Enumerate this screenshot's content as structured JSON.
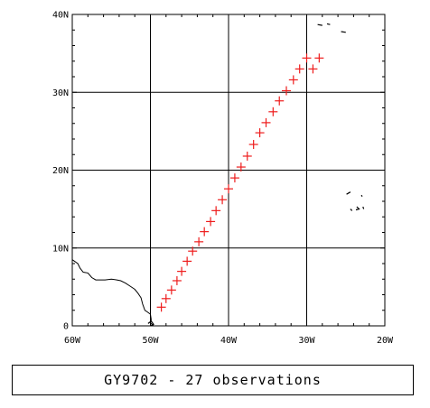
{
  "caption": "GY9702 - 27 observations",
  "colors": {
    "marker": "#ee1c1c",
    "grid": "#000000",
    "land": "#000000"
  },
  "map": {
    "lon_range": [
      -60,
      -20
    ],
    "lat_range": [
      0,
      40
    ],
    "lon_ticks": [
      {
        "value": -60,
        "label": "60W"
      },
      {
        "value": -50,
        "label": "50W"
      },
      {
        "value": -40,
        "label": "40W"
      },
      {
        "value": -30,
        "label": "30W"
      },
      {
        "value": -20,
        "label": "20W"
      }
    ],
    "lat_ticks": [
      {
        "value": 0,
        "label": "0"
      },
      {
        "value": 10,
        "label": "10N"
      },
      {
        "value": 20,
        "label": "20N"
      },
      {
        "value": 30,
        "label": "30N"
      },
      {
        "value": 40,
        "label": "40N"
      }
    ],
    "marker_symbol": "cross",
    "observations": [
      [
        -48.6,
        2.4
      ],
      [
        -48.0,
        3.5
      ],
      [
        -47.3,
        4.6
      ],
      [
        -46.6,
        5.8
      ],
      [
        -46.0,
        7.0
      ],
      [
        -45.3,
        8.3
      ],
      [
        -44.6,
        9.6
      ],
      [
        -43.8,
        10.8
      ],
      [
        -43.1,
        12.1
      ],
      [
        -42.3,
        13.4
      ],
      [
        -41.6,
        14.8
      ],
      [
        -40.8,
        16.2
      ],
      [
        -40.0,
        17.6
      ],
      [
        -39.2,
        19.0
      ],
      [
        -38.4,
        20.4
      ],
      [
        -37.6,
        21.8
      ],
      [
        -36.8,
        23.3
      ],
      [
        -36.0,
        24.8
      ],
      [
        -35.2,
        26.1
      ],
      [
        -34.3,
        27.5
      ],
      [
        -33.5,
        28.9
      ],
      [
        -32.6,
        30.2
      ],
      [
        -31.7,
        31.6
      ],
      [
        -30.9,
        33.0
      ],
      [
        -30.0,
        34.4
      ],
      [
        -29.2,
        33.0
      ],
      [
        -28.4,
        34.4
      ]
    ],
    "coastline_south_america": [
      [
        -60,
        8.5
      ],
      [
        -59.3,
        8.0
      ],
      [
        -59.0,
        7.4
      ],
      [
        -58.6,
        6.9
      ],
      [
        -58.0,
        6.8
      ],
      [
        -57.5,
        6.2
      ],
      [
        -57.0,
        5.9
      ],
      [
        -56.4,
        5.9
      ],
      [
        -55.8,
        5.9
      ],
      [
        -55.0,
        6.0
      ],
      [
        -54.3,
        5.9
      ],
      [
        -53.8,
        5.8
      ],
      [
        -53.2,
        5.5
      ],
      [
        -52.6,
        5.1
      ],
      [
        -52.0,
        4.7
      ],
      [
        -51.6,
        4.2
      ],
      [
        -51.2,
        3.6
      ],
      [
        -51.0,
        2.8
      ],
      [
        -50.7,
        2.0
      ],
      [
        -50.4,
        1.8
      ],
      [
        -50.0,
        1.5
      ],
      [
        -49.9,
        0.8
      ],
      [
        -50.0,
        0.4
      ],
      [
        -49.6,
        0.0
      ]
    ],
    "islands": [
      [
        [
          -50.3,
          0.3
        ],
        [
          -49.9,
          0.6
        ],
        [
          -49.6,
          0.2
        ],
        [
          -50.0,
          0.0
        ]
      ],
      [
        [
          -28.6,
          38.7
        ],
        [
          -28.0,
          38.6
        ]
      ],
      [
        [
          -27.4,
          38.8
        ],
        [
          -27.0,
          38.7
        ]
      ],
      [
        [
          -25.6,
          37.8
        ],
        [
          -25.0,
          37.7
        ]
      ],
      [
        [
          -24.4,
          17.2
        ],
        [
          -24.9,
          16.9
        ]
      ],
      [
        [
          -23.0,
          16.8
        ],
        [
          -22.9,
          16.6
        ]
      ],
      [
        [
          -23.6,
          15.3
        ],
        [
          -23.3,
          15.0
        ],
        [
          -23.7,
          14.9
        ]
      ],
      [
        [
          -24.4,
          15.0
        ],
        [
          -24.2,
          14.8
        ]
      ],
      [
        [
          -22.8,
          15.3
        ],
        [
          -22.7,
          15.0
        ]
      ]
    ]
  }
}
